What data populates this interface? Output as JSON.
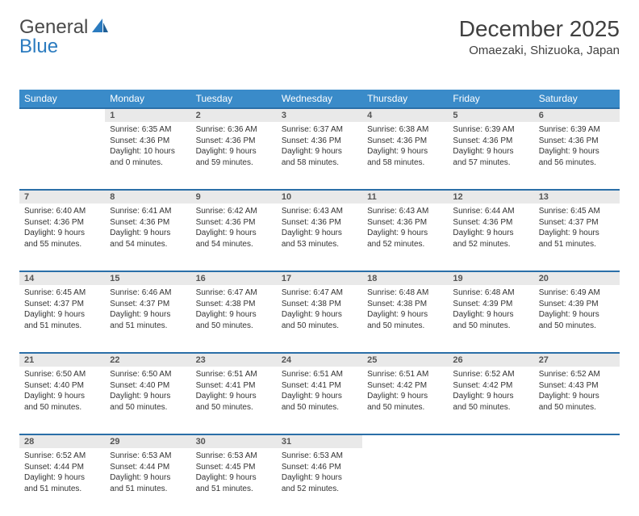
{
  "logo": {
    "part1": "General",
    "part2": "Blue"
  },
  "title": "December 2025",
  "location": "Omaezaki, Shizuoka, Japan",
  "weekdays": [
    "Sunday",
    "Monday",
    "Tuesday",
    "Wednesday",
    "Thursday",
    "Friday",
    "Saturday"
  ],
  "colors": {
    "header_bg": "#3a8bc9",
    "row_divider": "#2b6fa8",
    "daynum_bg": "#e9e9e9"
  },
  "weeks": [
    [
      null,
      {
        "n": "1",
        "sr": "Sunrise: 6:35 AM",
        "ss": "Sunset: 4:36 PM",
        "d1": "Daylight: 10 hours",
        "d2": "and 0 minutes."
      },
      {
        "n": "2",
        "sr": "Sunrise: 6:36 AM",
        "ss": "Sunset: 4:36 PM",
        "d1": "Daylight: 9 hours",
        "d2": "and 59 minutes."
      },
      {
        "n": "3",
        "sr": "Sunrise: 6:37 AM",
        "ss": "Sunset: 4:36 PM",
        "d1": "Daylight: 9 hours",
        "d2": "and 58 minutes."
      },
      {
        "n": "4",
        "sr": "Sunrise: 6:38 AM",
        "ss": "Sunset: 4:36 PM",
        "d1": "Daylight: 9 hours",
        "d2": "and 58 minutes."
      },
      {
        "n": "5",
        "sr": "Sunrise: 6:39 AM",
        "ss": "Sunset: 4:36 PM",
        "d1": "Daylight: 9 hours",
        "d2": "and 57 minutes."
      },
      {
        "n": "6",
        "sr": "Sunrise: 6:39 AM",
        "ss": "Sunset: 4:36 PM",
        "d1": "Daylight: 9 hours",
        "d2": "and 56 minutes."
      }
    ],
    [
      {
        "n": "7",
        "sr": "Sunrise: 6:40 AM",
        "ss": "Sunset: 4:36 PM",
        "d1": "Daylight: 9 hours",
        "d2": "and 55 minutes."
      },
      {
        "n": "8",
        "sr": "Sunrise: 6:41 AM",
        "ss": "Sunset: 4:36 PM",
        "d1": "Daylight: 9 hours",
        "d2": "and 54 minutes."
      },
      {
        "n": "9",
        "sr": "Sunrise: 6:42 AM",
        "ss": "Sunset: 4:36 PM",
        "d1": "Daylight: 9 hours",
        "d2": "and 54 minutes."
      },
      {
        "n": "10",
        "sr": "Sunrise: 6:43 AM",
        "ss": "Sunset: 4:36 PM",
        "d1": "Daylight: 9 hours",
        "d2": "and 53 minutes."
      },
      {
        "n": "11",
        "sr": "Sunrise: 6:43 AM",
        "ss": "Sunset: 4:36 PM",
        "d1": "Daylight: 9 hours",
        "d2": "and 52 minutes."
      },
      {
        "n": "12",
        "sr": "Sunrise: 6:44 AM",
        "ss": "Sunset: 4:36 PM",
        "d1": "Daylight: 9 hours",
        "d2": "and 52 minutes."
      },
      {
        "n": "13",
        "sr": "Sunrise: 6:45 AM",
        "ss": "Sunset: 4:37 PM",
        "d1": "Daylight: 9 hours",
        "d2": "and 51 minutes."
      }
    ],
    [
      {
        "n": "14",
        "sr": "Sunrise: 6:45 AM",
        "ss": "Sunset: 4:37 PM",
        "d1": "Daylight: 9 hours",
        "d2": "and 51 minutes."
      },
      {
        "n": "15",
        "sr": "Sunrise: 6:46 AM",
        "ss": "Sunset: 4:37 PM",
        "d1": "Daylight: 9 hours",
        "d2": "and 51 minutes."
      },
      {
        "n": "16",
        "sr": "Sunrise: 6:47 AM",
        "ss": "Sunset: 4:38 PM",
        "d1": "Daylight: 9 hours",
        "d2": "and 50 minutes."
      },
      {
        "n": "17",
        "sr": "Sunrise: 6:47 AM",
        "ss": "Sunset: 4:38 PM",
        "d1": "Daylight: 9 hours",
        "d2": "and 50 minutes."
      },
      {
        "n": "18",
        "sr": "Sunrise: 6:48 AM",
        "ss": "Sunset: 4:38 PM",
        "d1": "Daylight: 9 hours",
        "d2": "and 50 minutes."
      },
      {
        "n": "19",
        "sr": "Sunrise: 6:48 AM",
        "ss": "Sunset: 4:39 PM",
        "d1": "Daylight: 9 hours",
        "d2": "and 50 minutes."
      },
      {
        "n": "20",
        "sr": "Sunrise: 6:49 AM",
        "ss": "Sunset: 4:39 PM",
        "d1": "Daylight: 9 hours",
        "d2": "and 50 minutes."
      }
    ],
    [
      {
        "n": "21",
        "sr": "Sunrise: 6:50 AM",
        "ss": "Sunset: 4:40 PM",
        "d1": "Daylight: 9 hours",
        "d2": "and 50 minutes."
      },
      {
        "n": "22",
        "sr": "Sunrise: 6:50 AM",
        "ss": "Sunset: 4:40 PM",
        "d1": "Daylight: 9 hours",
        "d2": "and 50 minutes."
      },
      {
        "n": "23",
        "sr": "Sunrise: 6:51 AM",
        "ss": "Sunset: 4:41 PM",
        "d1": "Daylight: 9 hours",
        "d2": "and 50 minutes."
      },
      {
        "n": "24",
        "sr": "Sunrise: 6:51 AM",
        "ss": "Sunset: 4:41 PM",
        "d1": "Daylight: 9 hours",
        "d2": "and 50 minutes."
      },
      {
        "n": "25",
        "sr": "Sunrise: 6:51 AM",
        "ss": "Sunset: 4:42 PM",
        "d1": "Daylight: 9 hours",
        "d2": "and 50 minutes."
      },
      {
        "n": "26",
        "sr": "Sunrise: 6:52 AM",
        "ss": "Sunset: 4:42 PM",
        "d1": "Daylight: 9 hours",
        "d2": "and 50 minutes."
      },
      {
        "n": "27",
        "sr": "Sunrise: 6:52 AM",
        "ss": "Sunset: 4:43 PM",
        "d1": "Daylight: 9 hours",
        "d2": "and 50 minutes."
      }
    ],
    [
      {
        "n": "28",
        "sr": "Sunrise: 6:52 AM",
        "ss": "Sunset: 4:44 PM",
        "d1": "Daylight: 9 hours",
        "d2": "and 51 minutes."
      },
      {
        "n": "29",
        "sr": "Sunrise: 6:53 AM",
        "ss": "Sunset: 4:44 PM",
        "d1": "Daylight: 9 hours",
        "d2": "and 51 minutes."
      },
      {
        "n": "30",
        "sr": "Sunrise: 6:53 AM",
        "ss": "Sunset: 4:45 PM",
        "d1": "Daylight: 9 hours",
        "d2": "and 51 minutes."
      },
      {
        "n": "31",
        "sr": "Sunrise: 6:53 AM",
        "ss": "Sunset: 4:46 PM",
        "d1": "Daylight: 9 hours",
        "d2": "and 52 minutes."
      },
      null,
      null,
      null
    ]
  ]
}
